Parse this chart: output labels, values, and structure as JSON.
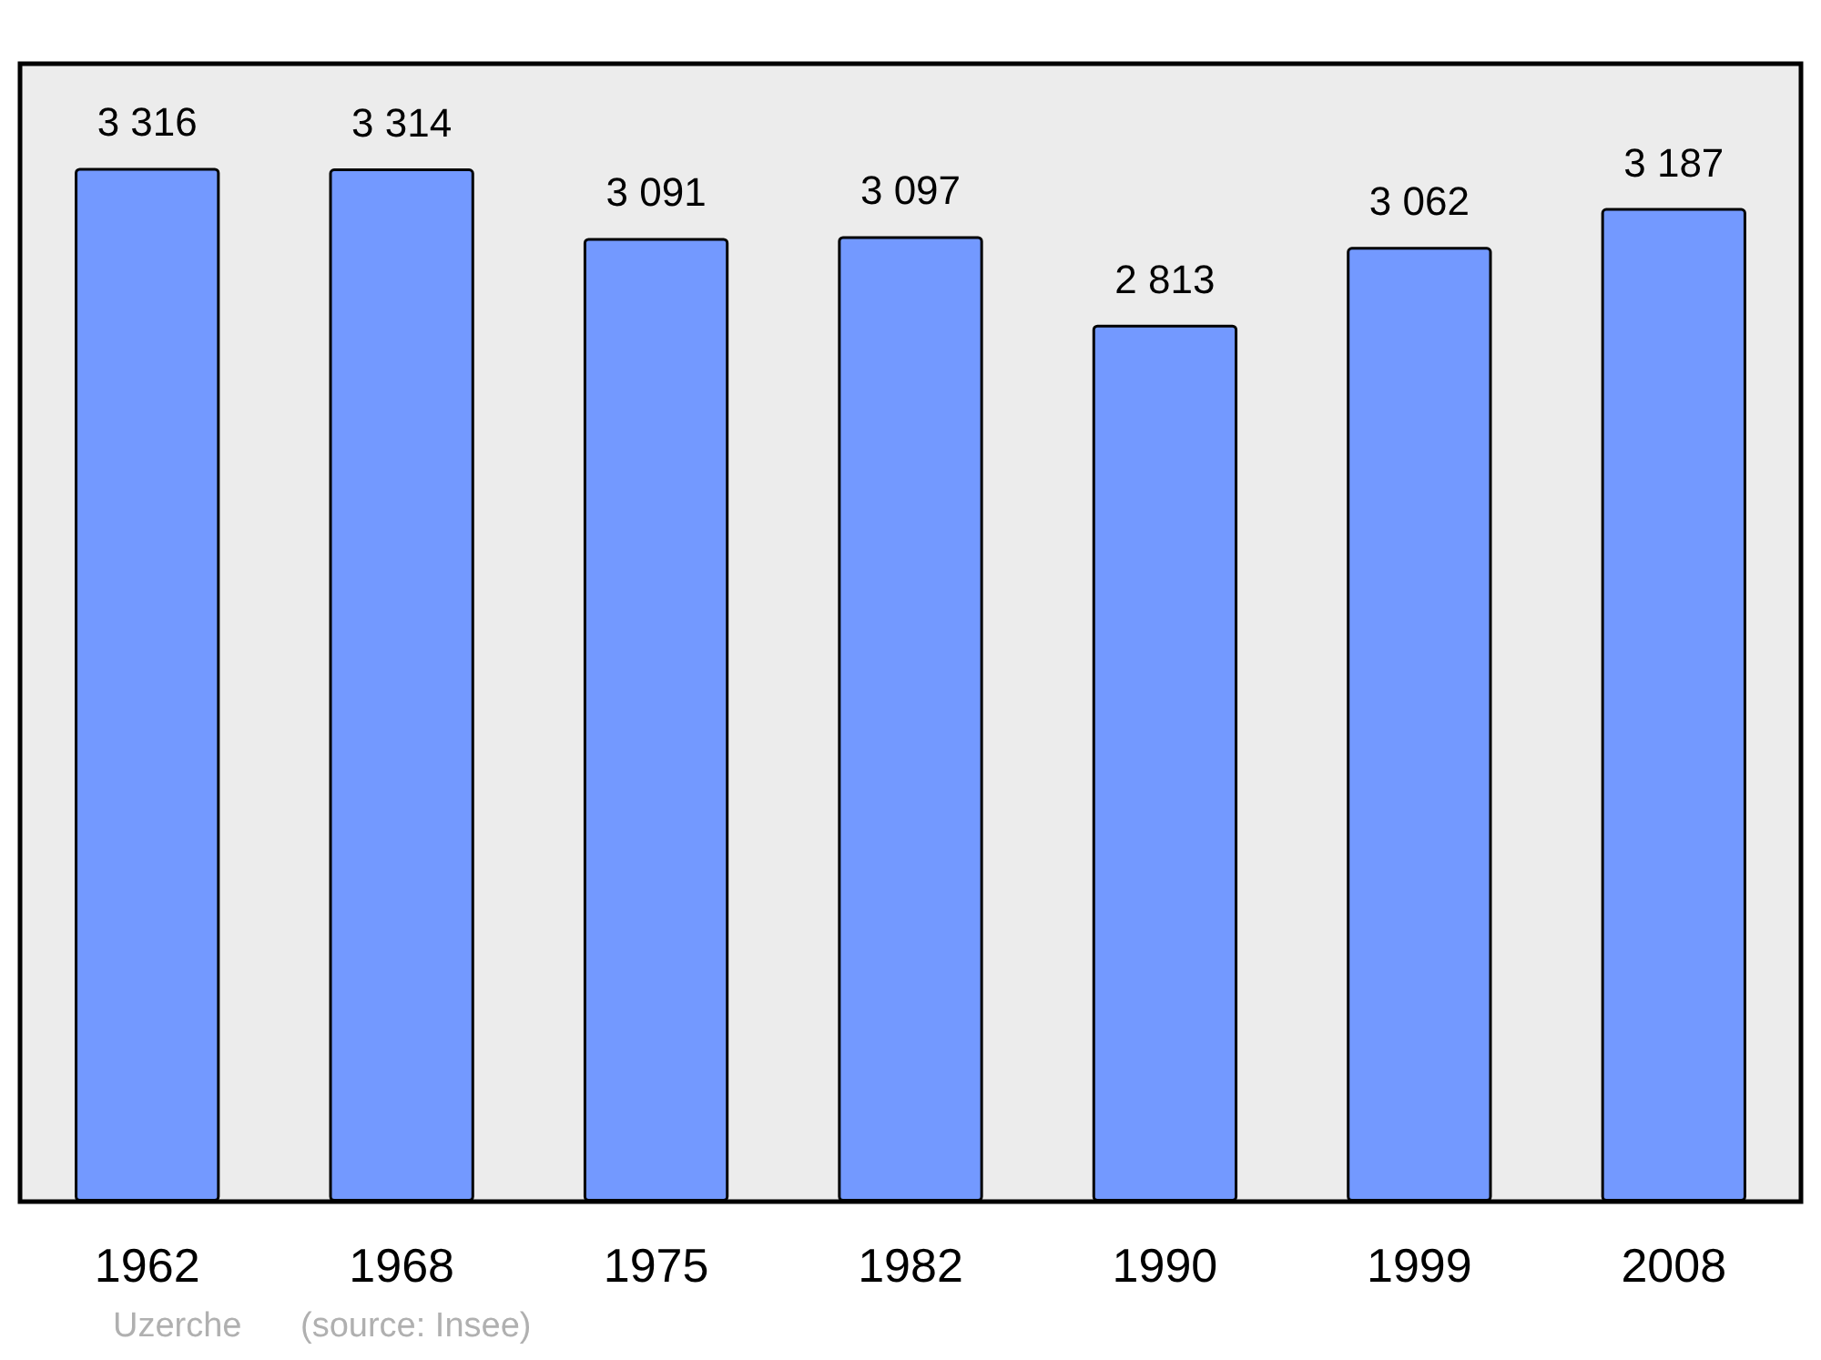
{
  "chart_data": {
    "type": "bar",
    "categories": [
      "1962",
      "1968",
      "1975",
      "1982",
      "1990",
      "1999",
      "2008"
    ],
    "values": [
      3316,
      3314,
      3091,
      3097,
      2813,
      3062,
      3187
    ],
    "color": "#7399ff",
    "ylim": [
      0,
      3650
    ],
    "tick_labels": "x",
    "data_labels": true,
    "value_labels": [
      "3 316",
      "3 314",
      "3 091",
      "3 097",
      "2 813",
      "3 062",
      "3 187"
    ],
    "annotations": [
      "Uzerche",
      "(source: Insee)"
    ]
  }
}
